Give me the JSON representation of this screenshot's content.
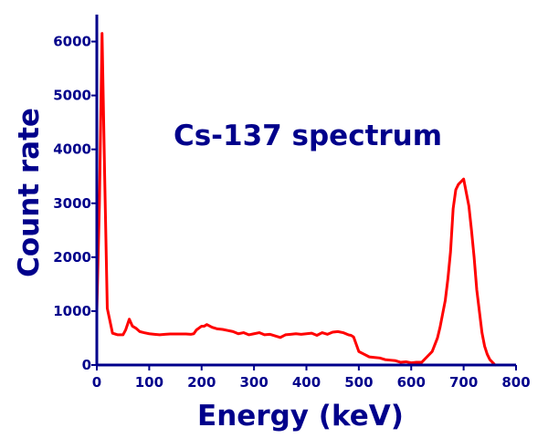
{
  "chart_data": {
    "type": "line",
    "title": "Cs-137 spectrum",
    "xlabel": "Energy (keV)",
    "ylabel": "Count rate",
    "xlim": [
      0,
      800
    ],
    "ylim": [
      0,
      6500
    ],
    "xticks": [
      0,
      100,
      200,
      300,
      400,
      500,
      600,
      700,
      800
    ],
    "yticks": [
      0,
      1000,
      2000,
      3000,
      4000,
      5000,
      6000
    ],
    "colors": {
      "axis": "#00008b",
      "series": "#ff0000"
    },
    "series": [
      {
        "name": "Cs-137",
        "x": [
          0,
          5,
          10,
          15,
          20,
          30,
          40,
          50,
          55,
          62,
          68,
          75,
          82,
          90,
          100,
          110,
          120,
          130,
          140,
          150,
          160,
          170,
          180,
          185,
          190,
          200,
          205,
          210,
          220,
          230,
          240,
          250,
          260,
          270,
          280,
          290,
          300,
          310,
          320,
          330,
          340,
          350,
          360,
          370,
          380,
          390,
          400,
          410,
          420,
          430,
          440,
          450,
          460,
          470,
          480,
          485,
          490,
          500,
          510,
          520,
          530,
          540,
          550,
          560,
          570,
          580,
          590,
          600,
          610,
          620,
          630,
          640,
          650,
          655,
          660,
          665,
          670,
          675,
          680,
          685,
          690,
          695,
          700,
          705,
          710,
          715,
          720,
          725,
          730,
          735,
          740,
          745,
          750,
          755,
          760
        ],
        "y": [
          1000,
          3000,
          6150,
          3500,
          1050,
          590,
          560,
          560,
          650,
          850,
          720,
          680,
          620,
          600,
          580,
          570,
          560,
          570,
          575,
          575,
          575,
          575,
          570,
          580,
          650,
          720,
          720,
          750,
          700,
          670,
          660,
          640,
          620,
          580,
          600,
          560,
          580,
          600,
          560,
          570,
          540,
          510,
          560,
          570,
          580,
          570,
          580,
          590,
          550,
          600,
          570,
          610,
          620,
          600,
          560,
          550,
          520,
          250,
          200,
          150,
          140,
          130,
          100,
          90,
          80,
          50,
          60,
          40,
          50,
          50,
          150,
          250,
          500,
          700,
          950,
          1200,
          1600,
          2100,
          2900,
          3250,
          3350,
          3400,
          3450,
          3200,
          2950,
          2500,
          2000,
          1400,
          1000,
          600,
          350,
          200,
          100,
          50,
          0
        ]
      }
    ]
  }
}
